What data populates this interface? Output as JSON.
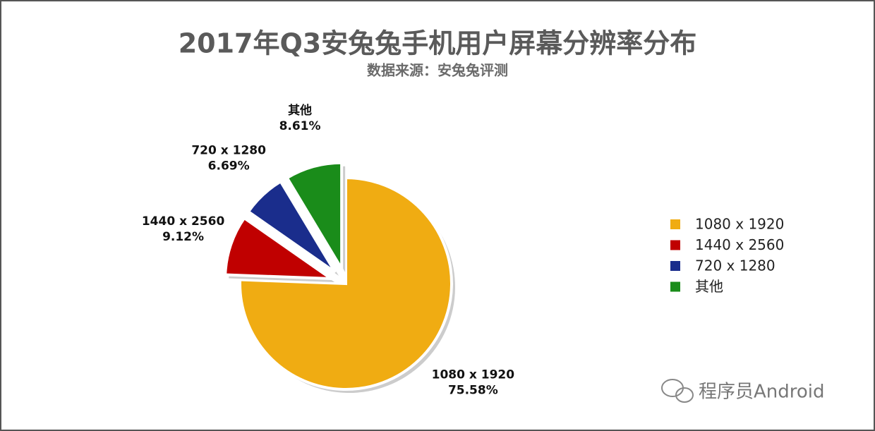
{
  "chart_data": {
    "type": "pie",
    "title": "2017年Q3安兔兔手机用户屏幕分辨率分布",
    "subtitle": "数据来源：安兔兔评测",
    "categories": [
      "1080 x 1920",
      "1440 x 2560",
      "720 x 1280",
      "其他"
    ],
    "values": [
      75.58,
      9.12,
      6.69,
      8.61
    ],
    "value_labels": [
      "75.58%",
      "9.12%",
      "6.69%",
      "8.61%"
    ],
    "colors": [
      "#f0ac12",
      "#c00000",
      "#1a2d8c",
      "#1a8c1a"
    ],
    "legend": "right"
  },
  "watermark": "程序员Android"
}
